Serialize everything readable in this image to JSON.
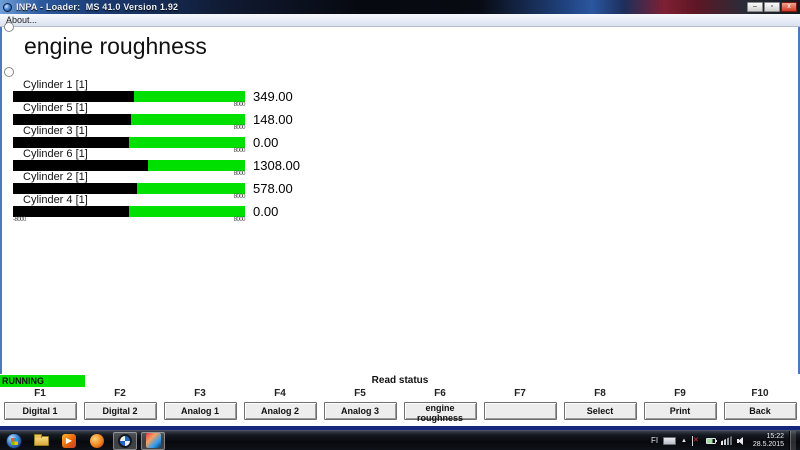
{
  "window": {
    "title": "INPA - Loader:  MS 41.0 Version 1.92",
    "controls": {
      "minimize": "–",
      "maximize": "▫",
      "close": "x"
    },
    "menu": {
      "about": "About..."
    }
  },
  "main": {
    "heading": "engine roughness",
    "scale": {
      "min": -8000,
      "max": 8000,
      "min_label": "-8000",
      "max_label": "8000"
    },
    "cylinders": [
      {
        "label": "Cylinder 1 [1]",
        "value": "349.00",
        "value_num": 349
      },
      {
        "label": "Cylinder 5 [1]",
        "value": "148.00",
        "value_num": 148
      },
      {
        "label": "Cylinder 3 [1]",
        "value": "0.00",
        "value_num": 0
      },
      {
        "label": "Cylinder 6 [1]",
        "value": "1308.00",
        "value_num": 1308
      },
      {
        "label": "Cylinder 2 [1]",
        "value": "578.00",
        "value_num": 578
      },
      {
        "label": "Cylinder 4 [1]",
        "value": "0.00",
        "value_num": 0
      }
    ]
  },
  "statusbar": {
    "state": "RUNNING",
    "message": "Read status"
  },
  "fkeys": [
    {
      "key": "F1",
      "label": "Digital 1"
    },
    {
      "key": "F2",
      "label": "Digital 2"
    },
    {
      "key": "F3",
      "label": "Analog 1"
    },
    {
      "key": "F4",
      "label": "Analog 2"
    },
    {
      "key": "F5",
      "label": "Analog 3"
    },
    {
      "key": "F6",
      "label": "engine roughness"
    },
    {
      "key": "F7",
      "label": ""
    },
    {
      "key": "F8",
      "label": "Select"
    },
    {
      "key": "F9",
      "label": "Print"
    },
    {
      "key": "F10",
      "label": "Back"
    }
  ],
  "taskbar": {
    "tray": {
      "language": "FI",
      "time": "15:22",
      "date": "28.5.2015"
    }
  },
  "colors": {
    "bar_green": "#00e000",
    "bar_fill": "#000000",
    "running_green": "#00e000",
    "window_border_blue": "#4d79bb",
    "bottom_border_navy": "#16267c"
  }
}
